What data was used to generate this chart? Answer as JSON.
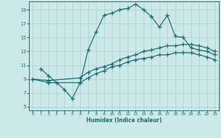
{
  "xlabel": "Humidex (Indice chaleur)",
  "bg_color": "#cce8e8",
  "grid_color": "#aacccc",
  "line_color": "#1a6b6b",
  "xlim": [
    -0.5,
    23.5
  ],
  "ylim": [
    4.5,
    20.2
  ],
  "xtick_vals": [
    0,
    1,
    2,
    3,
    4,
    5,
    6,
    7,
    8,
    9,
    10,
    11,
    12,
    13,
    14,
    15,
    16,
    17,
    18,
    19,
    20,
    21,
    22,
    23
  ],
  "ytick_vals": [
    5,
    7,
    9,
    11,
    13,
    15,
    17,
    19
  ],
  "line1_x": [
    1,
    2,
    3,
    4,
    5,
    6,
    7,
    8,
    9,
    10,
    11,
    12,
    13,
    14,
    15,
    16,
    17,
    18,
    19,
    20,
    21,
    22,
    23
  ],
  "line1_y": [
    10.5,
    9.5,
    8.5,
    7.5,
    6.2,
    8.5,
    13.2,
    15.8,
    18.2,
    18.5,
    19.0,
    19.2,
    19.8,
    19.0,
    18.0,
    16.5,
    18.2,
    15.2,
    15.0,
    13.5,
    13.2,
    13.0,
    12.5
  ],
  "line2_x": [
    0,
    2,
    6,
    7,
    8,
    9,
    10,
    11,
    12,
    13,
    14,
    15,
    16,
    17,
    18,
    19,
    20,
    21,
    22,
    23
  ],
  "line2_y": [
    9.0,
    8.8,
    9.2,
    10.0,
    10.5,
    10.8,
    11.2,
    11.8,
    12.2,
    12.5,
    13.0,
    13.2,
    13.5,
    13.8,
    13.8,
    14.0,
    14.0,
    13.8,
    13.5,
    13.0
  ],
  "line3_x": [
    0,
    2,
    6,
    7,
    8,
    9,
    10,
    11,
    12,
    13,
    14,
    15,
    16,
    17,
    18,
    19,
    20,
    21,
    22,
    23
  ],
  "line3_y": [
    9.0,
    8.5,
    8.5,
    9.2,
    9.8,
    10.2,
    10.8,
    11.0,
    11.5,
    11.8,
    12.0,
    12.2,
    12.5,
    12.5,
    12.8,
    12.8,
    12.8,
    12.5,
    12.2,
    11.8
  ]
}
